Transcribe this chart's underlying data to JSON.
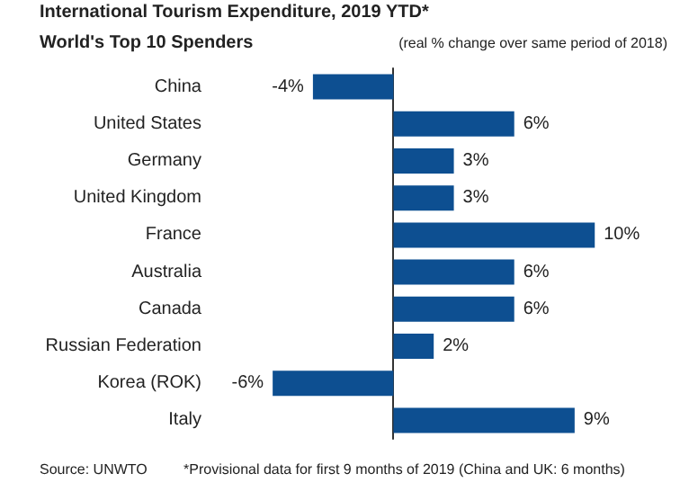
{
  "chart_data": {
    "type": "bar",
    "orientation": "horizontal",
    "title": "International Tourism Expenditure, 2019 YTD*",
    "subtitle": "World's Top 10 Spenders",
    "annotations": [
      "(real % change over same period of 2018)",
      "Source: UNWTO",
      "*Provisional data for first 9 months of 2019 (China and UK: 6 months)"
    ],
    "categories": [
      "China",
      "United States",
      "Germany",
      "United Kingdom",
      "France",
      "Australia",
      "Canada",
      "Russian Federation",
      "Korea (ROK)",
      "Italy"
    ],
    "values": [
      -4,
      6,
      3,
      3,
      10,
      6,
      6,
      2,
      -6,
      9
    ],
    "value_labels": [
      "-4%",
      "6%",
      "3%",
      "3%",
      "10%",
      "6%",
      "6%",
      "2%",
      "-6%",
      "9%"
    ],
    "color": "#0d4f91"
  }
}
